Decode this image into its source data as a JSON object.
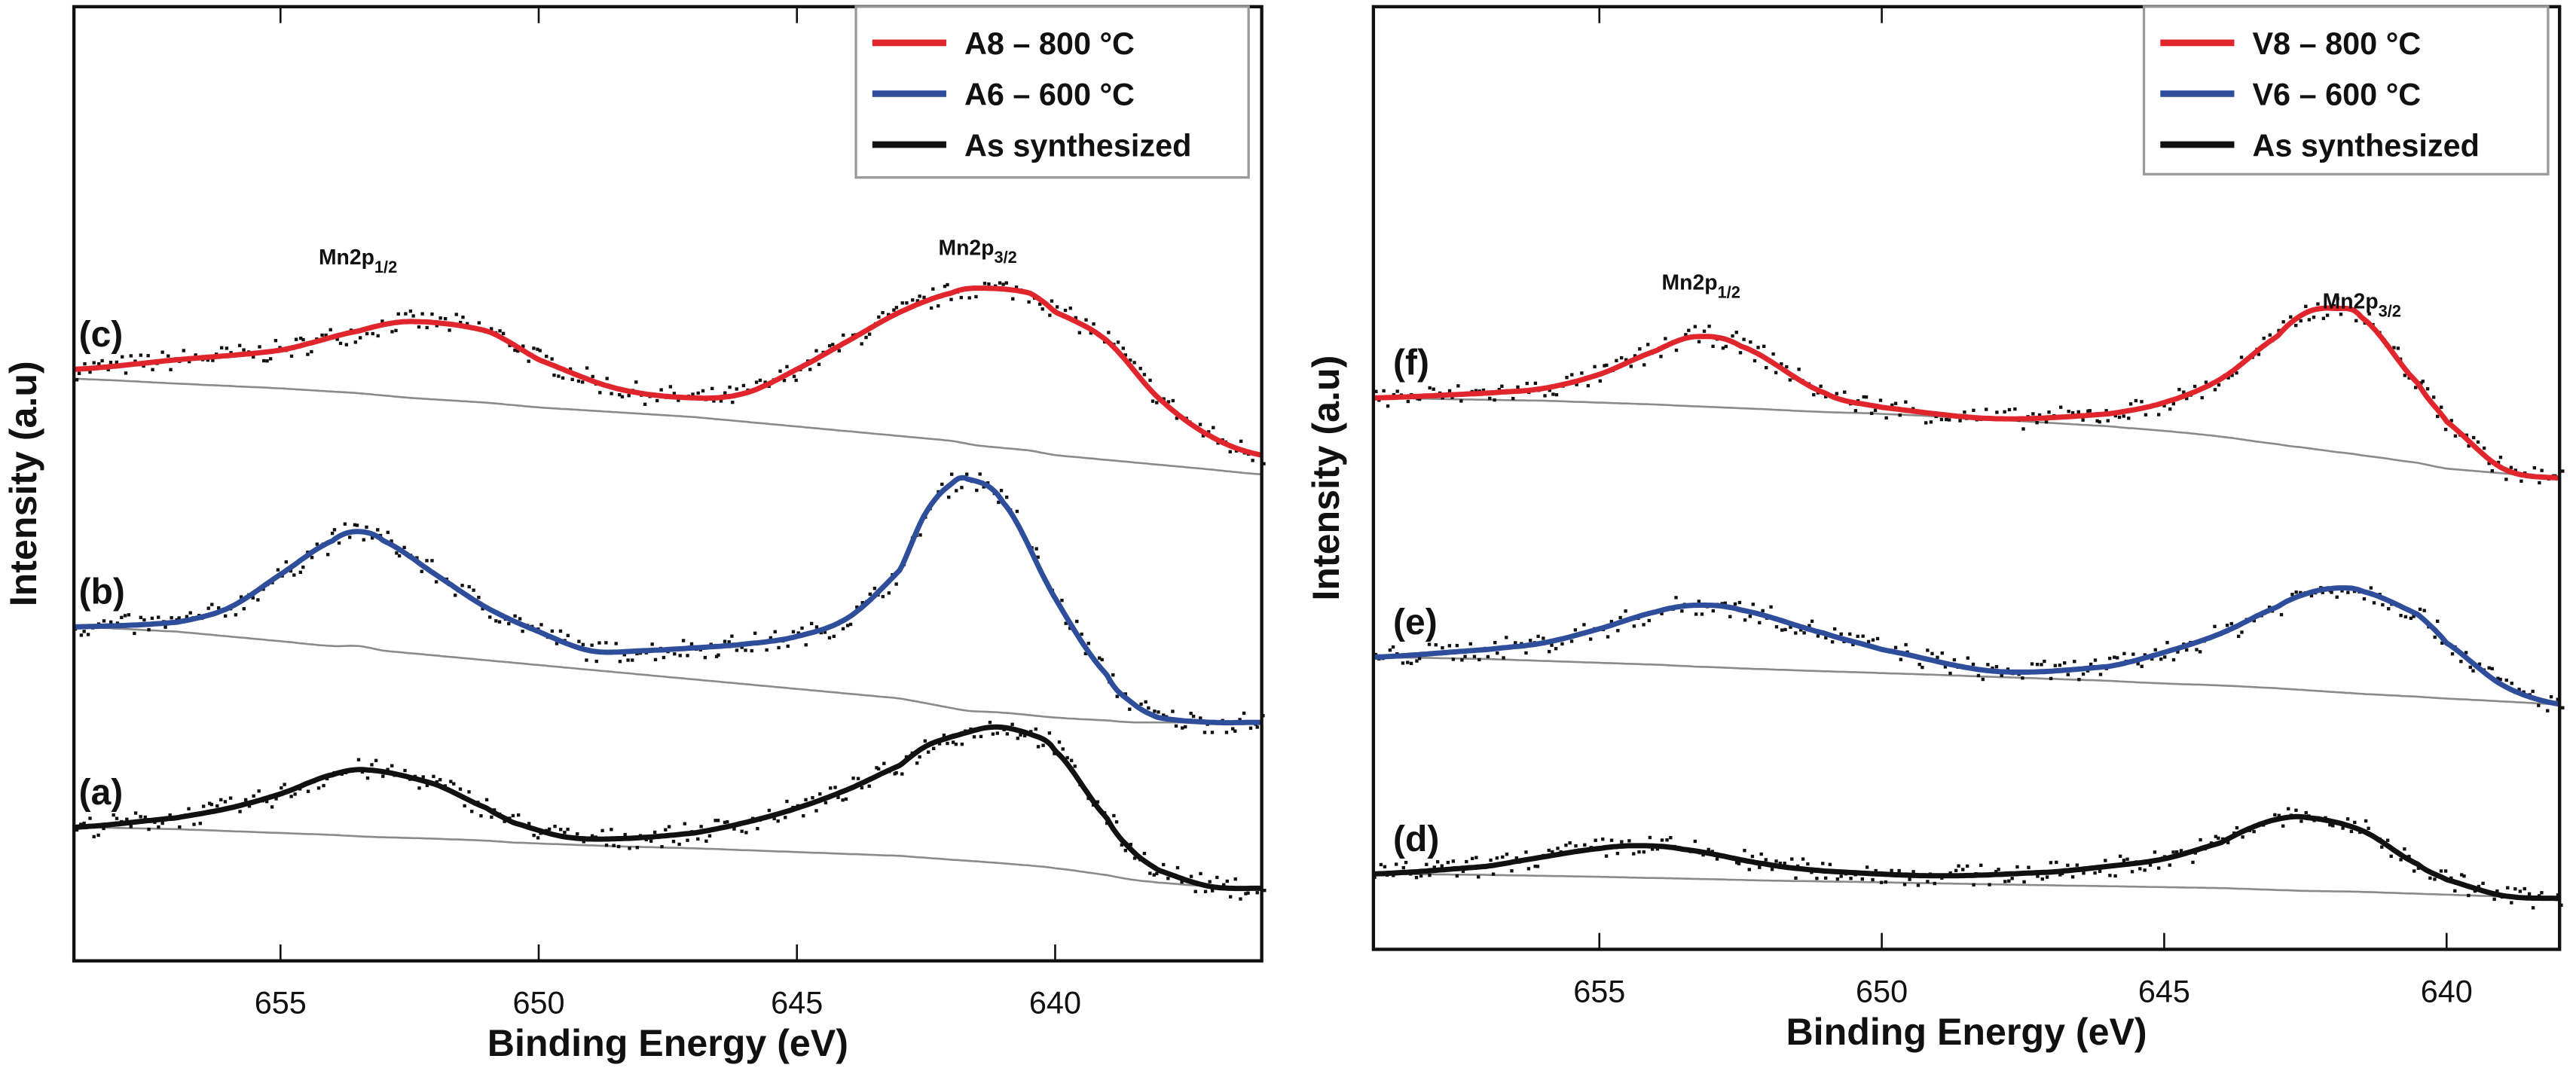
{
  "chart_data": [
    {
      "type": "line",
      "panel": "left",
      "xlabel": "Binding Energy (eV)",
      "ylabel": "Intensity (a.u)",
      "xlim": [
        659,
        636
      ],
      "ylim": [
        0,
        100
      ],
      "xticks": [
        "655",
        "650",
        "645",
        "640"
      ],
      "xtick_values": [
        655,
        650,
        645,
        640
      ],
      "grid": false,
      "legend_position": "top-right",
      "legend": [
        {
          "label": "A8 – 800 °C",
          "color": "#e0262c"
        },
        {
          "label": "A6 – 600 °C",
          "color": "#2e4d9b"
        },
        {
          "label": "As synthesized",
          "color": "#111111"
        }
      ],
      "annotations": [
        {
          "text": "Mn2p",
          "sub": "1/2",
          "x": 653.5,
          "y": 73
        },
        {
          "text": "Mn2p",
          "sub": "3/2",
          "x": 641.5,
          "y": 74
        }
      ],
      "series": [
        {
          "name": "(c)",
          "color": "#e0262c",
          "x": [
            659,
            657,
            655,
            653.5,
            652.5,
            651,
            650,
            648.5,
            647,
            646,
            645,
            644,
            643,
            642,
            641.5,
            640.5,
            640,
            639,
            638,
            637,
            636
          ],
          "y": [
            62,
            63,
            64,
            66,
            67,
            66,
            63,
            60,
            59,
            59.5,
            62,
            65,
            68,
            70,
            70.5,
            70,
            68,
            65,
            59,
            55,
            53
          ],
          "baseline": [
            61,
            60.5,
            60,
            59.5,
            59,
            58.5,
            58,
            57.5,
            57,
            56.5,
            56,
            55.5,
            55,
            54.5,
            54,
            53.5,
            53,
            52.5,
            52,
            51.5,
            51
          ]
        },
        {
          "name": "(b)",
          "color": "#2e4d9b",
          "x": [
            659,
            657,
            656,
            655,
            654,
            653.5,
            653,
            652,
            651,
            650,
            649,
            648,
            647,
            646,
            645,
            644,
            643,
            642.5,
            642,
            641.7,
            641,
            640,
            639,
            638.5,
            638,
            637,
            636
          ],
          "y": [
            35,
            35.5,
            37,
            40.5,
            44,
            45,
            44,
            40.5,
            37,
            34.5,
            32.5,
            32.5,
            32.8,
            33.2,
            34,
            36,
            41,
            47,
            50,
            50.5,
            48,
            38,
            30,
            27,
            25.5,
            25,
            25
          ],
          "baseline": [
            35,
            34.5,
            34,
            33.5,
            33,
            33,
            32.5,
            32,
            31.5,
            31,
            30.5,
            30,
            29.5,
            29,
            28.5,
            28,
            27.5,
            27,
            26.5,
            26.2,
            26,
            25.5,
            25.2,
            25,
            25,
            25,
            25
          ]
        },
        {
          "name": "(a)",
          "color": "#111111",
          "x": [
            659,
            657,
            656,
            655,
            654,
            653.3,
            652,
            651,
            650.5,
            649.5,
            648.5,
            647,
            646,
            645,
            644,
            643,
            642.5,
            642,
            641.2,
            640.5,
            640,
            639,
            638.5,
            638,
            637,
            636
          ],
          "y": [
            14,
            15,
            16,
            17.5,
            19.5,
            20,
            18.5,
            16,
            14.5,
            13,
            12.8,
            13.4,
            14.5,
            16,
            18,
            20.5,
            22.5,
            23.5,
            24.5,
            23.8,
            22,
            15,
            11.5,
            9.5,
            7.8,
            7.6
          ],
          "baseline": [
            14,
            13.8,
            13.6,
            13.4,
            13.2,
            13,
            12.8,
            12.6,
            12.4,
            12.2,
            12,
            11.8,
            11.6,
            11.4,
            11.2,
            11,
            10.8,
            10.6,
            10.3,
            10,
            9.7,
            9,
            8.5,
            8.2,
            7.8,
            7.6
          ]
        }
      ]
    },
    {
      "type": "line",
      "panel": "right",
      "xlabel": "Binding Energy (eV)",
      "ylabel": "Intensity (a.u)",
      "xlim": [
        659,
        638
      ],
      "ylim": [
        0,
        100
      ],
      "xticks": [
        "655",
        "650",
        "645",
        "640"
      ],
      "xtick_values": [
        655,
        650,
        645,
        640
      ],
      "grid": false,
      "legend_position": "top-right",
      "legend": [
        {
          "label": "V8 – 800 °C",
          "color": "#e0262c"
        },
        {
          "label": "V6 – 600 °C",
          "color": "#2e4d9b"
        },
        {
          "label": "As synthesized",
          "color": "#111111"
        }
      ],
      "annotations": [
        {
          "text": "Mn2p",
          "sub": "1/2",
          "x": 653.2,
          "y": 70
        },
        {
          "text": "Mn2p",
          "sub": "3/2",
          "x": 641.5,
          "y": 68
        }
      ],
      "series": [
        {
          "name": "(f)",
          "color": "#e0262c",
          "x": [
            659,
            657,
            656,
            655,
            654,
            653.3,
            652.5,
            651,
            650,
            648,
            646,
            645,
            644,
            643,
            642.5,
            642,
            641.5,
            640.5,
            640,
            639,
            638
          ],
          "y": [
            58.5,
            59,
            59.5,
            61,
            63.5,
            65,
            64,
            59,
            57.5,
            56.3,
            56.8,
            58,
            60.5,
            65,
            67.5,
            68,
            67,
            60,
            56,
            51,
            50
          ],
          "baseline": [
            58.5,
            58.3,
            58.2,
            58,
            57.8,
            57.6,
            57.4,
            57,
            56.8,
            56.2,
            55.5,
            55,
            54.4,
            53.6,
            53.2,
            52.8,
            52.4,
            51.6,
            51,
            50.5,
            50
          ]
        },
        {
          "name": "(e)",
          "color": "#2e4d9b",
          "x": [
            659,
            657,
            656,
            655,
            654,
            653.3,
            652.5,
            651,
            650,
            648,
            646,
            645,
            644,
            643,
            642.5,
            642,
            641.5,
            640.5,
            640,
            639,
            638
          ],
          "y": [
            31,
            31.8,
            32.5,
            34,
            35.8,
            36.5,
            36,
            33.5,
            31.8,
            29.5,
            30,
            31.5,
            33.5,
            36.3,
            37.7,
            38.3,
            38,
            35.5,
            32.5,
            28,
            26
          ],
          "baseline": [
            31,
            30.8,
            30.6,
            30.4,
            30.2,
            30,
            29.8,
            29.5,
            29.3,
            28.9,
            28.5,
            28.2,
            28,
            27.7,
            27.5,
            27.3,
            27.1,
            26.8,
            26.6,
            26.3,
            26
          ]
        },
        {
          "name": "(d)",
          "color": "#111111",
          "x": [
            659,
            657,
            656,
            655,
            654.3,
            653.5,
            652,
            651,
            649,
            647,
            646,
            645,
            644,
            643.5,
            643,
            642.5,
            641.5,
            640.5,
            640,
            639,
            638
          ],
          "y": [
            8,
            8.8,
            9.8,
            10.7,
            11,
            10.6,
            9,
            8.3,
            7.8,
            8.2,
            8.8,
            9.6,
            11.3,
            12.8,
            13.8,
            14,
            12.6,
            9,
            7.4,
            5.7,
            5.4
          ],
          "baseline": [
            8,
            7.9,
            7.8,
            7.7,
            7.6,
            7.5,
            7.3,
            7.2,
            7,
            6.8,
            6.7,
            6.6,
            6.5,
            6.4,
            6.3,
            6.2,
            6.1,
            5.9,
            5.8,
            5.6,
            5.4
          ]
        }
      ]
    }
  ],
  "labels": {
    "left": [
      "(c)",
      "(b)",
      "(a)"
    ],
    "right": [
      "(f)",
      "(e)",
      "(d)"
    ]
  }
}
